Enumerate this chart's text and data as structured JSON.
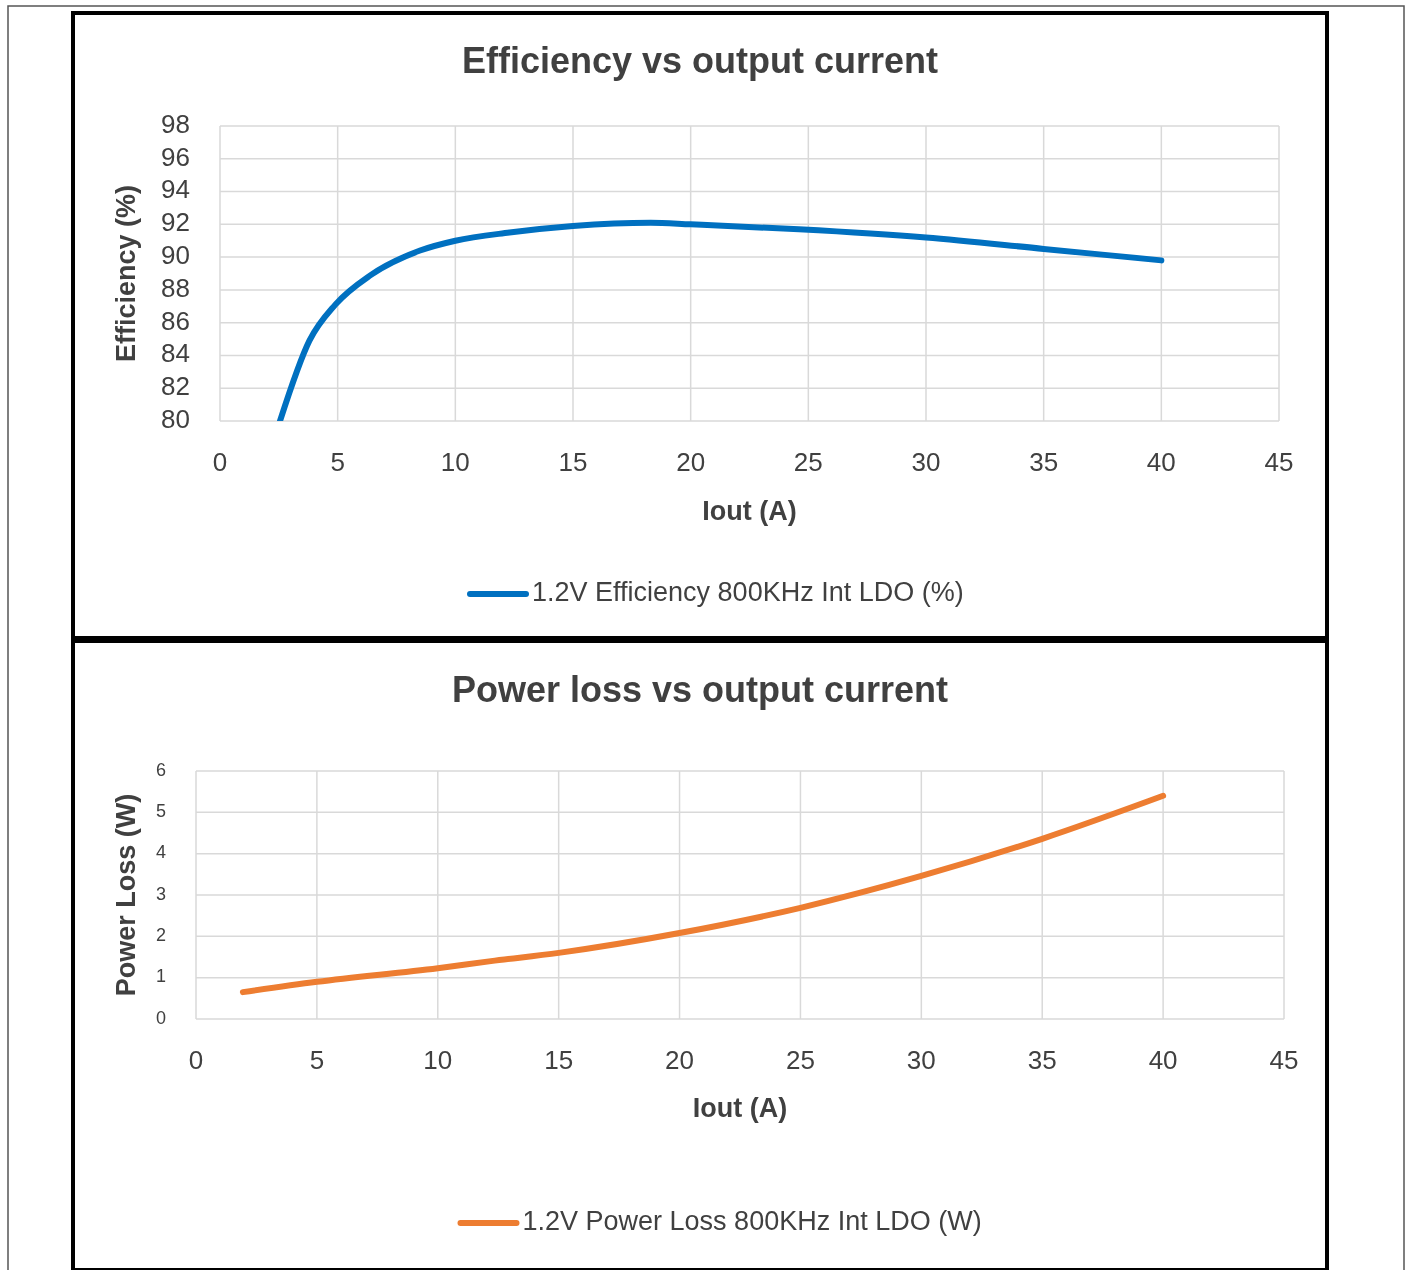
{
  "chart_data": [
    {
      "type": "line",
      "title": "Efficiency vs output current",
      "xlabel": "Iout (A)",
      "ylabel": "Efficiency (%)",
      "xlim": [
        0,
        45
      ],
      "xticks": [
        0,
        5,
        10,
        15,
        20,
        25,
        30,
        35,
        40,
        45
      ],
      "ylim": [
        80,
        98
      ],
      "yticks": [
        80,
        82,
        84,
        86,
        88,
        90,
        92,
        94,
        96,
        98
      ],
      "grid": true,
      "legend": "bottom",
      "marker": "none",
      "line_style": "solid",
      "series": [
        {
          "name": "1.2V Efficiency 800KHz Int LDO (%)",
          "color": "#0070c0",
          "x": [
            2.55,
            3.8,
            4.9,
            6.4,
            8.5,
            10,
            12.3,
            15,
            18.3,
            20,
            24.6,
            30,
            35,
            40
          ],
          "values": [
            80,
            84.9,
            87.1,
            88.9,
            90.4,
            91,
            91.5,
            91.9,
            92.1,
            92,
            91.7,
            91.2,
            90.5,
            89.8
          ]
        }
      ]
    },
    {
      "type": "line",
      "title": "Power loss vs output current",
      "xlabel": "Iout (A)",
      "ylabel": "Power Loss (W)",
      "xlim": [
        0,
        45
      ],
      "xticks": [
        0,
        5,
        10,
        15,
        20,
        25,
        30,
        35,
        40,
        45
      ],
      "ylim": [
        0,
        6
      ],
      "yticks": [
        0,
        1,
        2,
        3,
        4,
        5,
        6
      ],
      "grid": true,
      "legend": "bottom",
      "marker": "none",
      "line_style": "solid",
      "series": [
        {
          "name": "1.2V Power Loss 800KHz Int LDO (W)",
          "color": "#ed7d31",
          "x": [
            1.94,
            5,
            10,
            12.2,
            15,
            20,
            25,
            30,
            35,
            40
          ],
          "values": [
            0.65,
            0.9,
            1.23,
            1.4,
            1.6,
            2.08,
            2.69,
            3.46,
            4.36,
            5.4
          ]
        }
      ]
    }
  ]
}
